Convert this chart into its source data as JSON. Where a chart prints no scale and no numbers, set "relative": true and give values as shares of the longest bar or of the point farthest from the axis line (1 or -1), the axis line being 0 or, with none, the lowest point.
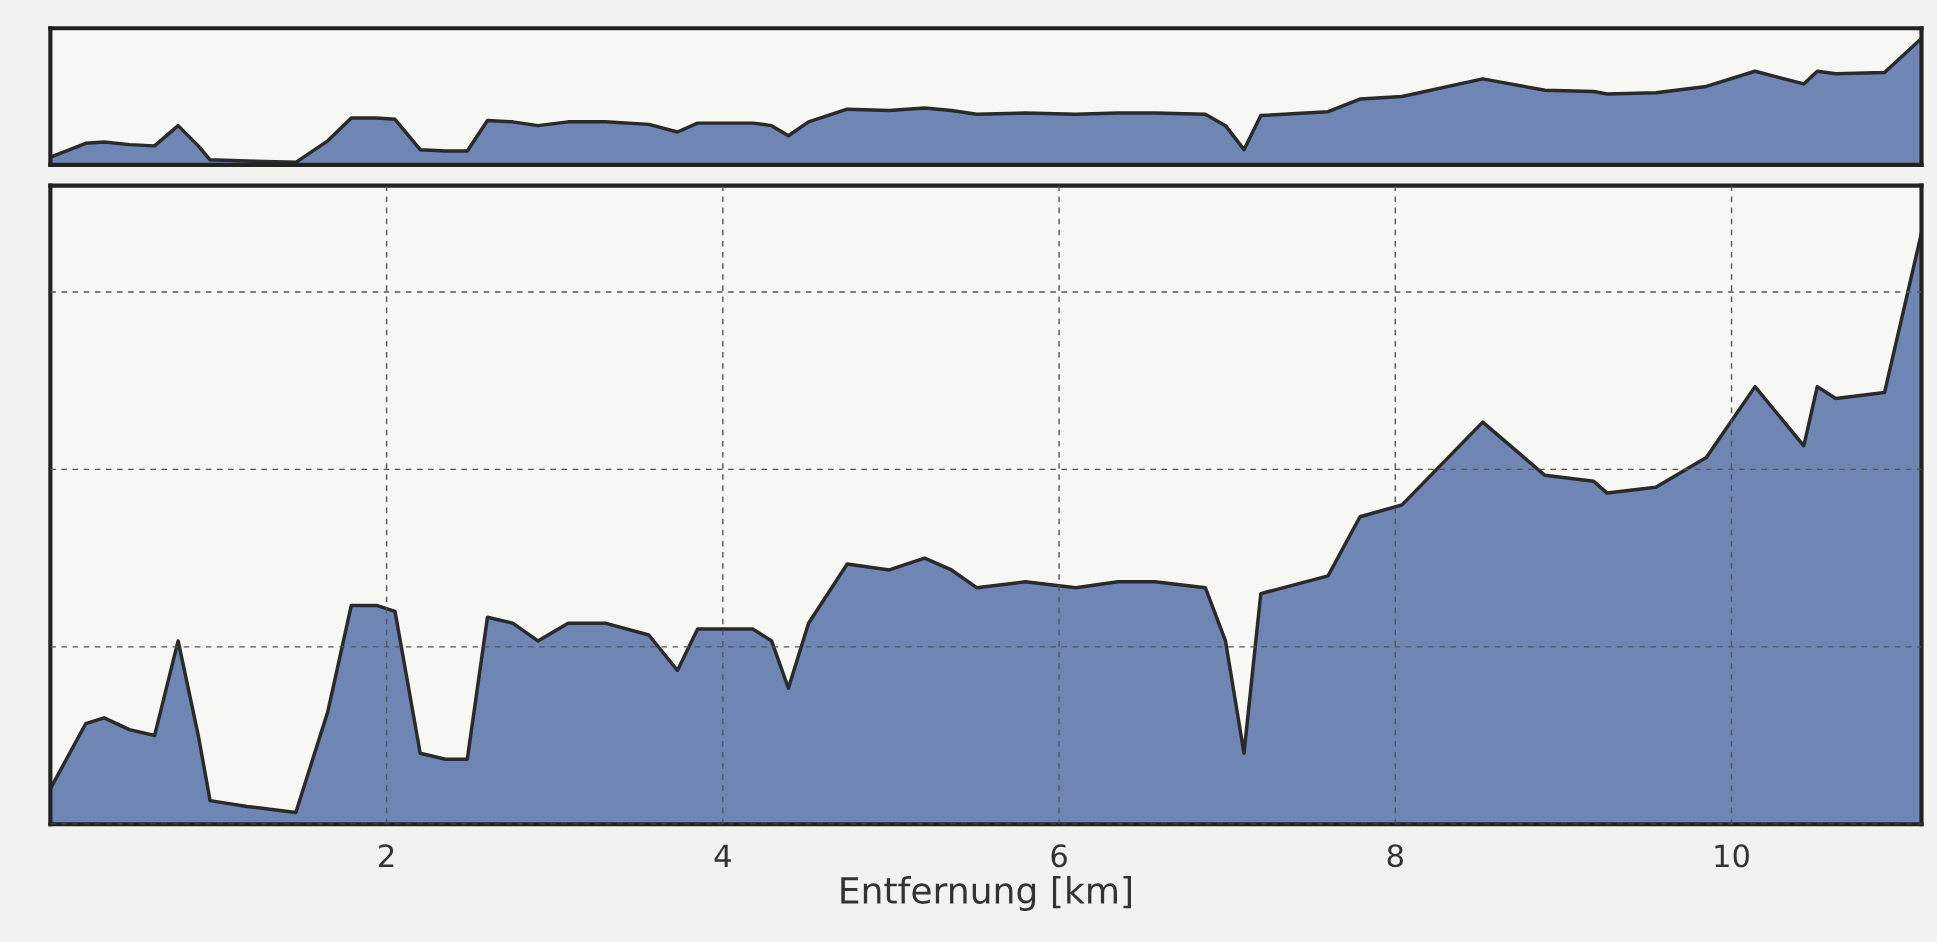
{
  "chart_data": [
    {
      "type": "area",
      "relative": true,
      "grid": false,
      "tick_labels": false,
      "xlim": [
        0,
        11.13
      ],
      "x": [
        0.0,
        0.21,
        0.32,
        0.47,
        0.62,
        0.76,
        0.88,
        0.95,
        1.17,
        1.46,
        1.65,
        1.79,
        1.94,
        2.05,
        2.2,
        2.35,
        2.48,
        2.6,
        2.75,
        2.9,
        3.08,
        3.3,
        3.56,
        3.73,
        3.85,
        4.18,
        4.29,
        4.39,
        4.51,
        4.74,
        4.99,
        5.2,
        5.36,
        5.51,
        5.8,
        6.1,
        6.35,
        6.57,
        6.87,
        6.99,
        7.1,
        7.2,
        7.6,
        7.79,
        8.04,
        8.52,
        8.89,
        9.18,
        9.26,
        9.55,
        9.85,
        10.14,
        10.43,
        10.51,
        10.62,
        10.91,
        11.13
      ],
      "series": [
        {
          "color": "#6f86b5",
          "values": [
            0.06,
            0.17,
            0.18,
            0.16,
            0.15,
            0.31,
            0.15,
            0.04,
            0.03,
            0.02,
            0.19,
            0.37,
            0.37,
            0.36,
            0.12,
            0.11,
            0.11,
            0.35,
            0.34,
            0.31,
            0.34,
            0.34,
            0.32,
            0.26,
            0.33,
            0.33,
            0.31,
            0.23,
            0.34,
            0.44,
            0.43,
            0.45,
            0.43,
            0.4,
            0.41,
            0.4,
            0.41,
            0.41,
            0.4,
            0.31,
            0.12,
            0.39,
            0.42,
            0.52,
            0.54,
            0.68,
            0.59,
            0.58,
            0.56,
            0.57,
            0.62,
            0.74,
            0.64,
            0.74,
            0.72,
            0.73,
            1.0
          ]
        }
      ]
    },
    {
      "type": "area",
      "relative": true,
      "grid": true,
      "tick_labels": "x",
      "xlim": [
        0,
        11.13
      ],
      "xticks": [
        2,
        4,
        6,
        8,
        10
      ],
      "xlabel": "Entfernung [km]",
      "x": [
        0.0,
        0.21,
        0.32,
        0.47,
        0.62,
        0.76,
        0.88,
        0.95,
        1.17,
        1.46,
        1.65,
        1.79,
        1.94,
        2.05,
        2.2,
        2.35,
        2.48,
        2.6,
        2.75,
        2.9,
        3.08,
        3.3,
        3.56,
        3.73,
        3.85,
        4.18,
        4.29,
        4.39,
        4.51,
        4.74,
        4.99,
        5.2,
        5.36,
        5.51,
        5.8,
        6.1,
        6.35,
        6.57,
        6.87,
        6.99,
        7.1,
        7.2,
        7.6,
        7.79,
        8.04,
        8.52,
        8.89,
        9.18,
        9.26,
        9.55,
        9.85,
        10.14,
        10.43,
        10.51,
        10.62,
        10.91,
        11.13
      ],
      "series": [
        {
          "color": "#6f86b5",
          "values": [
            0.06,
            0.17,
            0.18,
            0.16,
            0.15,
            0.31,
            0.15,
            0.04,
            0.03,
            0.02,
            0.19,
            0.37,
            0.37,
            0.36,
            0.12,
            0.11,
            0.11,
            0.35,
            0.34,
            0.31,
            0.34,
            0.34,
            0.32,
            0.26,
            0.33,
            0.33,
            0.31,
            0.23,
            0.34,
            0.44,
            0.43,
            0.45,
            0.43,
            0.4,
            0.41,
            0.4,
            0.41,
            0.41,
            0.4,
            0.31,
            0.12,
            0.39,
            0.42,
            0.52,
            0.54,
            0.68,
            0.59,
            0.58,
            0.56,
            0.57,
            0.62,
            0.74,
            0.64,
            0.74,
            0.72,
            0.73,
            1.0
          ]
        }
      ]
    }
  ]
}
